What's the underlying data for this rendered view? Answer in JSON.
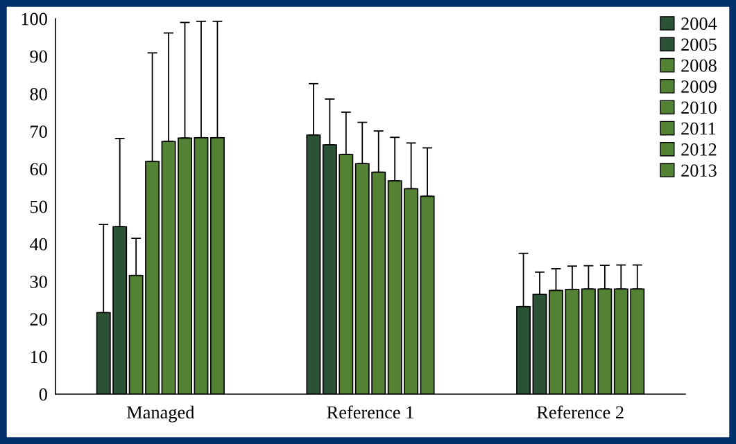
{
  "chart_data": {
    "type": "bar",
    "categories": [
      "Managed",
      "Reference 1",
      "Reference 2"
    ],
    "series": [
      {
        "name": "2004",
        "color": "#2b5234",
        "values": [
          21.7,
          69.0,
          23.3
        ],
        "errors": [
          [
            21.7,
            45.2
          ],
          [
            69.0,
            82.7
          ],
          [
            23.3,
            37.5
          ]
        ]
      },
      {
        "name": "2005",
        "color": "#2b5234",
        "values": [
          44.6,
          66.4,
          26.6
        ],
        "errors": [
          [
            44.6,
            68.1
          ],
          [
            66.4,
            78.6
          ],
          [
            26.6,
            32.5
          ]
        ]
      },
      {
        "name": "2008",
        "color": "#548235",
        "values": [
          31.6,
          63.8,
          27.6
        ],
        "errors": [
          [
            31.6,
            41.5
          ],
          [
            63.8,
            75.1
          ],
          [
            27.6,
            33.4
          ]
        ]
      },
      {
        "name": "2009",
        "color": "#548235",
        "values": [
          62.0,
          61.4,
          27.9
        ],
        "errors": [
          [
            62.0,
            90.9
          ],
          [
            61.4,
            72.4
          ],
          [
            27.9,
            34.1
          ]
        ]
      },
      {
        "name": "2010",
        "color": "#548235",
        "values": [
          67.3,
          59.1,
          28.0
        ],
        "errors": [
          [
            67.3,
            96.2
          ],
          [
            59.1,
            70.1
          ],
          [
            28.0,
            34.2
          ]
        ]
      },
      {
        "name": "2011",
        "color": "#548235",
        "values": [
          68.2,
          56.8,
          28.0
        ],
        "errors": [
          [
            68.2,
            99.0
          ],
          [
            56.8,
            68.4
          ],
          [
            28.0,
            34.3
          ]
        ]
      },
      {
        "name": "2012",
        "color": "#548235",
        "values": [
          68.3,
          54.7,
          28.0
        ],
        "errors": [
          [
            68.3,
            99.3
          ],
          [
            54.7,
            66.9
          ],
          [
            28.0,
            34.4
          ]
        ]
      },
      {
        "name": "2013",
        "color": "#548235",
        "values": [
          68.3,
          52.7,
          28.0
        ],
        "errors": [
          [
            68.3,
            99.3
          ],
          [
            52.7,
            65.6
          ],
          [
            28.0,
            34.4
          ]
        ]
      }
    ],
    "ylim": [
      0,
      100
    ],
    "yticks": [
      0,
      10,
      20,
      30,
      40,
      50,
      60,
      70,
      80,
      90,
      100
    ],
    "grid": false,
    "legend": "top right"
  }
}
